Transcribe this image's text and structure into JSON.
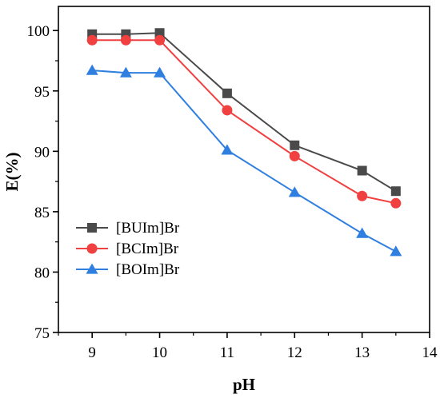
{
  "chart_data": {
    "type": "line",
    "xlabel": "pH",
    "ylabel": "E(%)",
    "xlim": [
      8.5,
      14
    ],
    "ylim": [
      75,
      102
    ],
    "xticks": [
      9,
      10,
      11,
      12,
      13,
      14
    ],
    "yticks": [
      75,
      80,
      85,
      90,
      95,
      100
    ],
    "x": [
      9,
      9.5,
      10,
      11,
      12,
      13,
      13.5
    ],
    "legend_position": "center-left",
    "grid": false,
    "series": [
      {
        "name": "[BUIm]Br",
        "color": "#4a4a4a",
        "marker": "square",
        "values": [
          99.7,
          99.7,
          99.8,
          94.8,
          90.5,
          88.4,
          86.7
        ]
      },
      {
        "name": "[BCIm]Br",
        "color": "#f04040",
        "marker": "circle",
        "values": [
          99.2,
          99.2,
          99.2,
          93.4,
          89.6,
          86.3,
          85.7
        ]
      },
      {
        "name": "[BOIm]Br",
        "color": "#2f7fe0",
        "marker": "triangle",
        "values": [
          96.7,
          96.5,
          96.5,
          90.1,
          86.6,
          83.2,
          81.7
        ]
      }
    ]
  }
}
